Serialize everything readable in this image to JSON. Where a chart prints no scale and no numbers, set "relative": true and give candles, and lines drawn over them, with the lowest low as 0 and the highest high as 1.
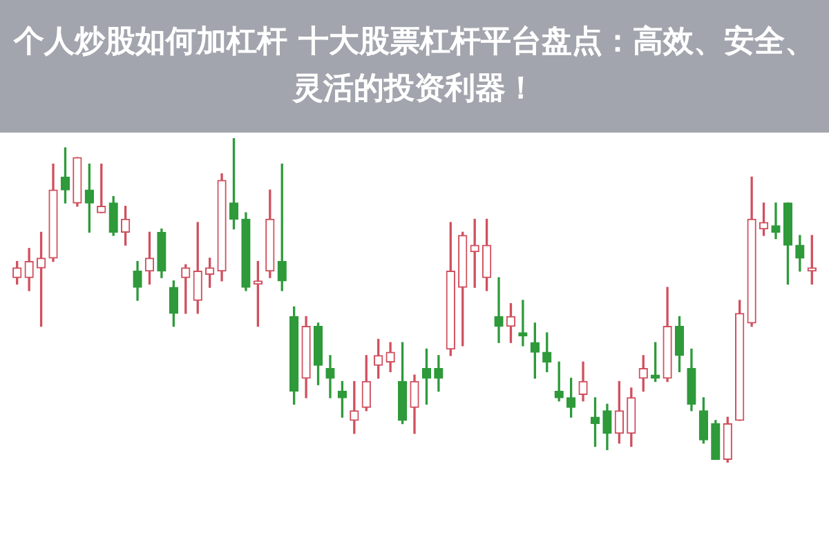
{
  "chart_data": {
    "type": "candlestick",
    "title": "个人炒股如何加杠杆 十大股票杠杆平台盘点：高效、安全、灵活的投资利器！",
    "relative": true,
    "categories": [
      null,
      null,
      null,
      null,
      null,
      null,
      null,
      null,
      null,
      null,
      null,
      null,
      null,
      null,
      null,
      null,
      null,
      null,
      null,
      null,
      null,
      null,
      null,
      null,
      null,
      null,
      null,
      null,
      null,
      null,
      null,
      null,
      null,
      null,
      null,
      null,
      null,
      null,
      null,
      null,
      null,
      null,
      null,
      null,
      null,
      null,
      null,
      null,
      null,
      null,
      null,
      null,
      null,
      null,
      null,
      null,
      null,
      null,
      null,
      null,
      null,
      null,
      null,
      null,
      null,
      null,
      null
    ],
    "ohlc": [
      [
        0.57,
        0.62,
        0.55,
        0.6
      ],
      [
        0.57,
        0.66,
        0.53,
        0.62
      ],
      [
        0.6,
        0.71,
        0.42,
        0.63
      ],
      [
        0.63,
        0.92,
        0.62,
        0.84
      ],
      [
        0.88,
        0.97,
        0.8,
        0.84
      ],
      [
        0.8,
        0.94,
        0.79,
        0.94
      ],
      [
        0.84,
        0.92,
        0.71,
        0.8
      ],
      [
        0.77,
        0.92,
        0.77,
        0.79
      ],
      [
        0.8,
        0.82,
        0.7,
        0.71
      ],
      [
        0.71,
        0.79,
        0.67,
        0.75
      ],
      [
        0.59,
        0.62,
        0.5,
        0.54
      ],
      [
        0.59,
        0.71,
        0.55,
        0.63
      ],
      [
        0.71,
        0.72,
        0.57,
        0.59
      ],
      [
        0.54,
        0.56,
        0.42,
        0.46
      ],
      [
        0.57,
        0.61,
        0.46,
        0.6
      ],
      [
        0.5,
        0.74,
        0.46,
        0.59
      ],
      [
        0.58,
        0.63,
        0.54,
        0.6
      ],
      [
        0.59,
        0.89,
        0.56,
        0.87
      ],
      [
        0.8,
        1.0,
        0.72,
        0.75
      ],
      [
        0.75,
        0.77,
        0.53,
        0.54
      ],
      [
        0.55,
        0.62,
        0.42,
        0.56
      ],
      [
        0.59,
        0.84,
        0.57,
        0.75
      ],
      [
        0.62,
        0.92,
        0.53,
        0.56
      ],
      [
        0.45,
        0.48,
        0.18,
        0.22
      ],
      [
        0.26,
        0.45,
        0.2,
        0.42
      ],
      [
        0.42,
        0.43,
        0.24,
        0.3
      ],
      [
        0.29,
        0.33,
        0.2,
        0.26
      ],
      [
        0.22,
        0.25,
        0.14,
        0.2
      ],
      [
        0.13,
        0.25,
        0.09,
        0.16
      ],
      [
        0.17,
        0.33,
        0.16,
        0.25
      ],
      [
        0.3,
        0.38,
        0.26,
        0.33
      ],
      [
        0.31,
        0.37,
        0.28,
        0.34
      ],
      [
        0.25,
        0.37,
        0.12,
        0.13
      ],
      [
        0.17,
        0.27,
        0.09,
        0.25
      ],
      [
        0.29,
        0.35,
        0.18,
        0.26
      ],
      [
        0.29,
        0.33,
        0.22,
        0.26
      ],
      [
        0.35,
        0.74,
        0.33,
        0.59
      ],
      [
        0.54,
        0.71,
        0.36,
        0.7
      ],
      [
        0.65,
        0.75,
        0.54,
        0.67
      ],
      [
        0.57,
        0.75,
        0.53,
        0.67
      ],
      [
        0.45,
        0.57,
        0.37,
        0.42
      ],
      [
        0.42,
        0.49,
        0.37,
        0.45
      ],
      [
        0.4,
        0.5,
        0.36,
        0.39
      ],
      [
        0.37,
        0.43,
        0.26,
        0.34
      ],
      [
        0.34,
        0.4,
        0.28,
        0.31
      ],
      [
        0.22,
        0.31,
        0.19,
        0.2
      ],
      [
        0.2,
        0.26,
        0.14,
        0.17
      ],
      [
        0.21,
        0.31,
        0.19,
        0.25
      ],
      [
        0.14,
        0.2,
        0.05,
        0.12
      ],
      [
        0.16,
        0.18,
        0.04,
        0.09
      ],
      [
        0.09,
        0.25,
        0.06,
        0.16
      ],
      [
        0.09,
        0.23,
        0.05,
        0.2
      ],
      [
        0.26,
        0.33,
        0.22,
        0.29
      ],
      [
        0.27,
        0.37,
        0.25,
        0.26
      ],
      [
        0.26,
        0.54,
        0.25,
        0.42
      ],
      [
        0.42,
        0.45,
        0.28,
        0.33
      ],
      [
        0.29,
        0.35,
        0.16,
        0.18
      ],
      [
        0.16,
        0.2,
        0.06,
        0.07
      ],
      [
        0.12,
        0.13,
        0.01,
        0.01
      ],
      [
        0.01,
        0.14,
        0.0,
        0.12
      ],
      [
        0.13,
        0.5,
        0.13,
        0.46
      ],
      [
        0.43,
        0.88,
        0.42,
        0.75
      ],
      [
        0.72,
        0.8,
        0.7,
        0.74
      ],
      [
        0.73,
        0.8,
        0.69,
        0.71
      ],
      [
        0.8,
        0.8,
        0.55,
        0.67
      ],
      [
        0.67,
        0.7,
        0.59,
        0.63
      ],
      [
        0.59,
        0.7,
        0.55,
        0.6
      ]
    ],
    "colors": [
      "#d0505e",
      "#d0505e",
      "#d0505e",
      "#d0505e",
      "#2e9a3a",
      "#d0505e",
      "#2e9a3a",
      "#d0505e",
      "#2e9a3a",
      "#d0505e",
      "#2e9a3a",
      "#d0505e",
      "#2e9a3a",
      "#2e9a3a",
      "#d0505e",
      "#d0505e",
      "#d0505e",
      "#d0505e",
      "#2e9a3a",
      "#2e9a3a",
      "#d0505e",
      "#d0505e",
      "#2e9a3a",
      "#2e9a3a",
      "#d0505e",
      "#2e9a3a",
      "#2e9a3a",
      "#2e9a3a",
      "#d0505e",
      "#d0505e",
      "#d0505e",
      "#d0505e",
      "#2e9a3a",
      "#d0505e",
      "#2e9a3a",
      "#2e9a3a",
      "#d0505e",
      "#d0505e",
      "#d0505e",
      "#d0505e",
      "#2e9a3a",
      "#d0505e",
      "#2e9a3a",
      "#2e9a3a",
      "#2e9a3a",
      "#2e9a3a",
      "#2e9a3a",
      "#d0505e",
      "#2e9a3a",
      "#2e9a3a",
      "#d0505e",
      "#d0505e",
      "#d0505e",
      "#2e9a3a",
      "#d0505e",
      "#2e9a3a",
      "#2e9a3a",
      "#2e9a3a",
      "#2e9a3a",
      "#d0505e",
      "#d0505e",
      "#d0505e",
      "#d0505e",
      "#2e9a3a",
      "#2e9a3a",
      "#2e9a3a",
      "#d0505e"
    ]
  }
}
